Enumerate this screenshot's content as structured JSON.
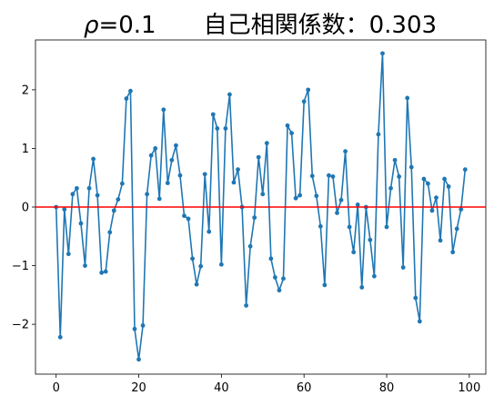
{
  "chart_data": {
    "type": "line",
    "title": "ρ=0.1　　自己相関係数：0.303",
    "title_parts": {
      "symbol": "ρ",
      "rest": "=0.1　　自己相関係数：0.303"
    },
    "xlabel": "",
    "ylabel": "",
    "xlim": [
      -5,
      104
    ],
    "ylim": [
      -2.85,
      2.85
    ],
    "xticks": [
      0,
      20,
      40,
      60,
      80,
      100
    ],
    "yticks": [
      -2,
      -1,
      0,
      1,
      2
    ],
    "ytick_labels": [
      "−2",
      "−1",
      "0",
      "1",
      "2"
    ],
    "grid": false,
    "legend": "none",
    "reference_line": {
      "y": 0,
      "color": "#ff0000"
    },
    "series": [
      {
        "color": "#1f77b4",
        "marker": "circle",
        "x": [
          0,
          1,
          2,
          3,
          4,
          5,
          6,
          7,
          8,
          9,
          10,
          11,
          12,
          13,
          14,
          15,
          16,
          17,
          18,
          19,
          20,
          21,
          22,
          23,
          24,
          25,
          26,
          27,
          28,
          29,
          30,
          31,
          32,
          33,
          34,
          35,
          36,
          37,
          38,
          39,
          40,
          41,
          42,
          43,
          44,
          45,
          46,
          47,
          48,
          49,
          50,
          51,
          52,
          53,
          54,
          55,
          56,
          57,
          58,
          59,
          60,
          61,
          62,
          63,
          64,
          65,
          66,
          67,
          68,
          69,
          70,
          71,
          72,
          73,
          74,
          75,
          76,
          77,
          78,
          79,
          80,
          81,
          82,
          83,
          84,
          85,
          86,
          87,
          88,
          89,
          90,
          91,
          92,
          93,
          94,
          95,
          96,
          97,
          98,
          99
        ],
        "values": [
          0.0,
          -2.22,
          -0.04,
          -0.8,
          0.22,
          0.32,
          -0.28,
          -1.0,
          0.32,
          0.82,
          0.2,
          -1.12,
          -1.1,
          -0.43,
          -0.06,
          0.13,
          0.4,
          1.85,
          1.98,
          -2.08,
          -2.6,
          -2.02,
          0.22,
          0.88,
          1.0,
          0.14,
          1.66,
          0.41,
          0.8,
          1.05,
          0.54,
          -0.15,
          -0.2,
          -0.88,
          -1.32,
          -1.01,
          0.56,
          -0.42,
          1.58,
          1.34,
          -0.98,
          1.34,
          1.92,
          0.42,
          0.64,
          0.0,
          -1.68,
          -0.67,
          -0.18,
          0.85,
          0.22,
          1.09,
          -0.88,
          -1.2,
          -1.42,
          -1.22,
          1.39,
          1.26,
          0.15,
          0.2,
          1.8,
          2.0,
          0.53,
          0.19,
          -0.33,
          -1.33,
          0.54,
          0.52,
          -0.1,
          0.12,
          0.95,
          -0.34,
          -0.77,
          0.04,
          -1.37,
          0.0,
          -0.56,
          -1.18,
          1.24,
          2.62,
          -0.34,
          0.32,
          0.8,
          0.52,
          -1.03,
          1.86,
          0.68,
          -1.55,
          -1.95,
          0.48,
          0.4,
          -0.06,
          0.16,
          -0.57,
          0.48,
          0.35,
          -0.77,
          -0.37,
          -0.04,
          0.64
        ]
      }
    ]
  }
}
